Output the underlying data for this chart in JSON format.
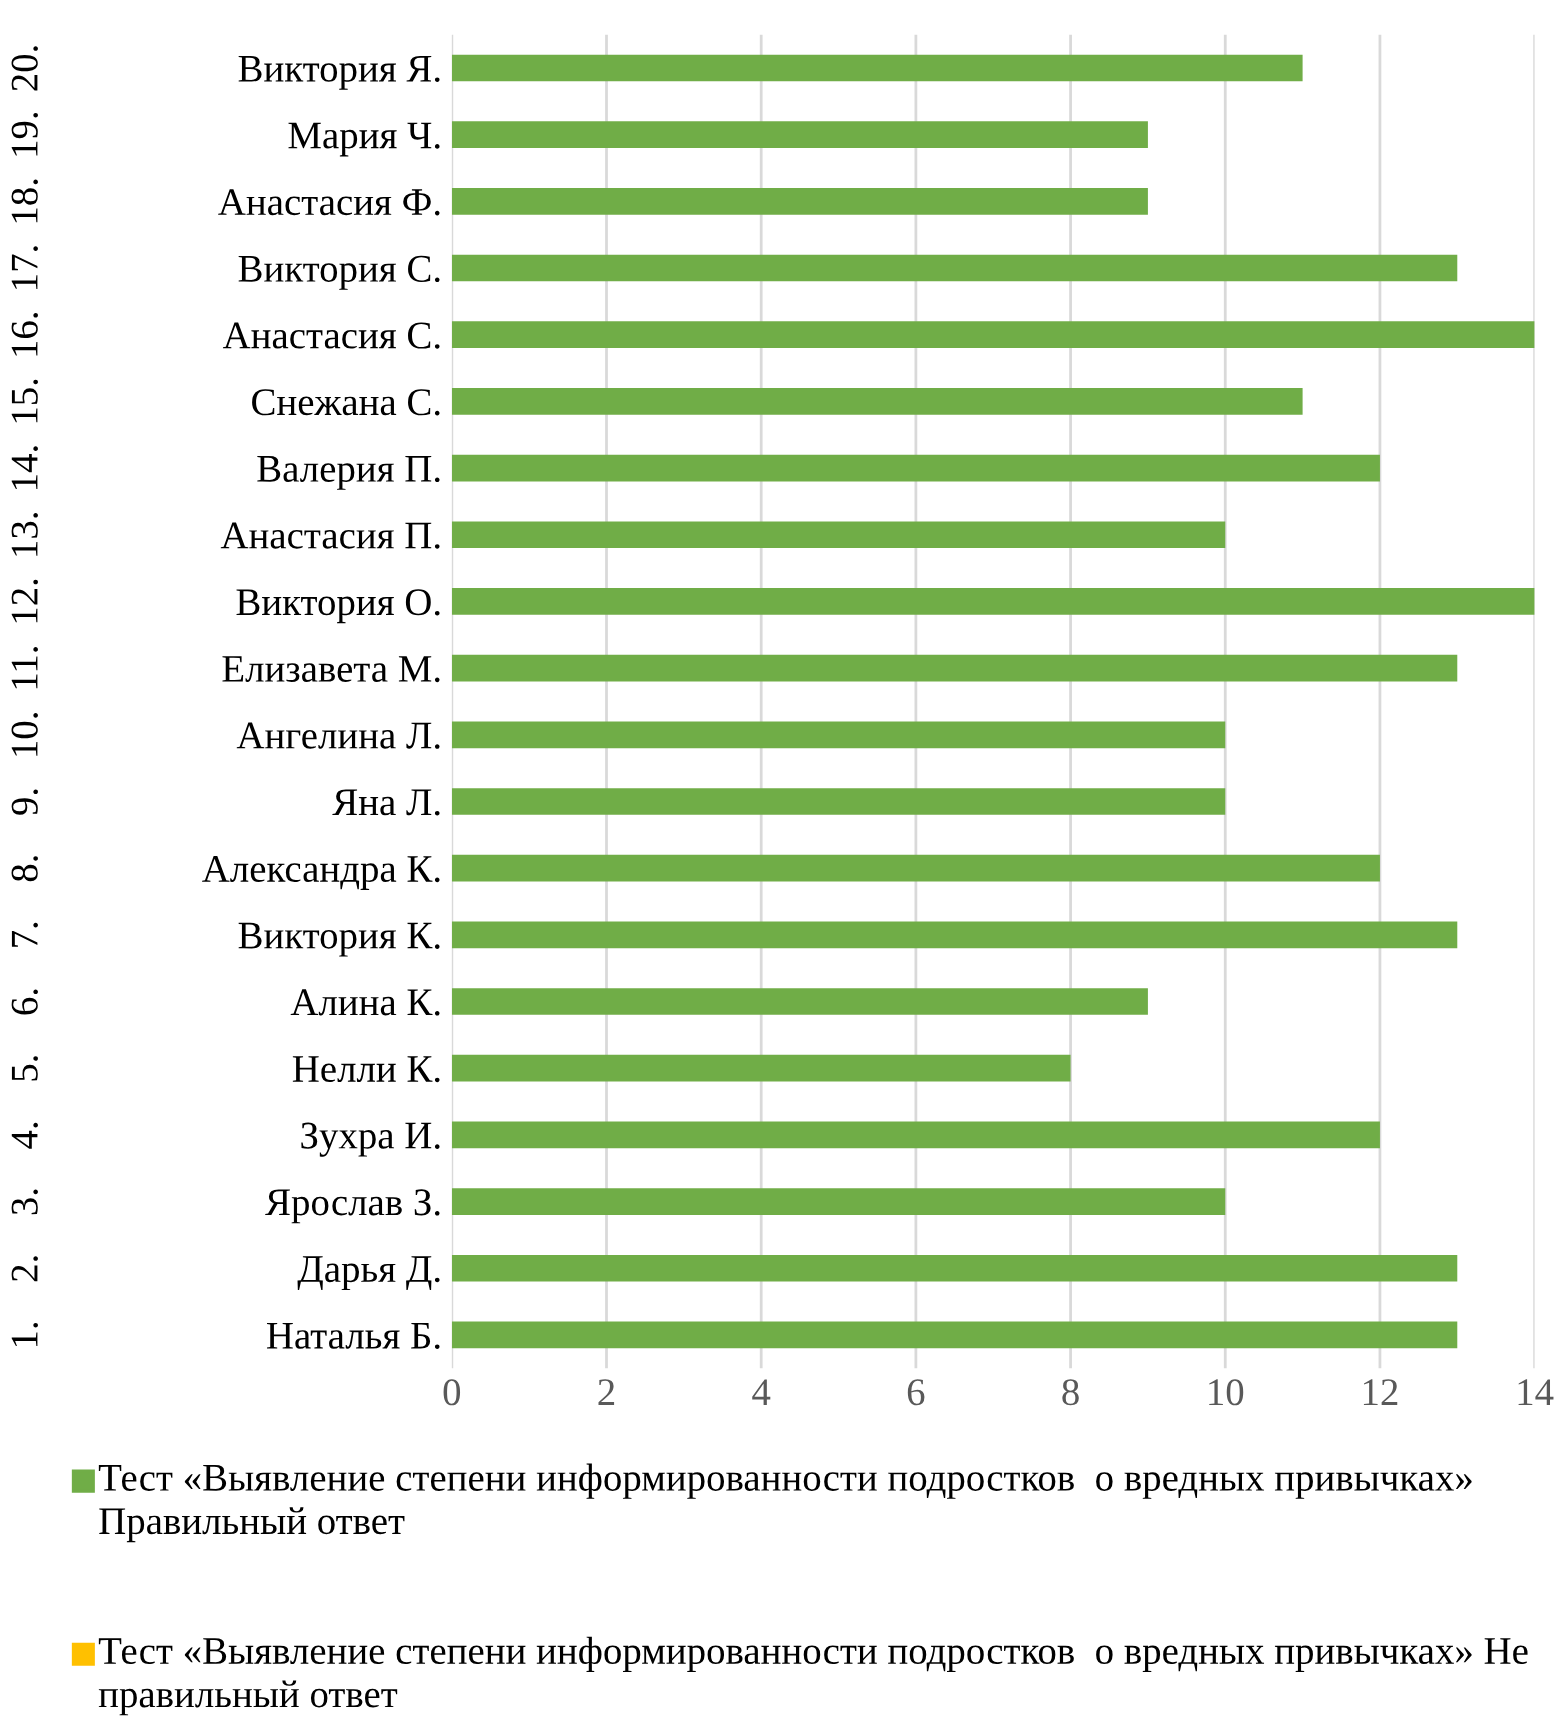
{
  "chart_data": {
    "type": "bar",
    "orientation": "horizontal",
    "categories": [
      "Виктория Я.",
      "Мария Ч.",
      "Анастасия Ф.",
      "Виктория С.",
      "Анастасия С.",
      "Снежана С.",
      "Валерия П.",
      "Анастасия П.",
      "Виктория О.",
      "Елизавета М.",
      "Ангелина Л.",
      "Яна Л.",
      "Александра К.",
      "Виктория К.",
      "Алина К.",
      "Нелли К.",
      "Зухра И.",
      "Ярослав З.",
      "Дарья Д.",
      "Наталья Б."
    ],
    "series": [
      {
        "name": "Тест «Выявление степени информированности подростков  о вредных привычках» Правильный ответ",
        "color": "#70ad47",
        "values": [
          11,
          9,
          9,
          13,
          14,
          11,
          12,
          10,
          14,
          13,
          10,
          10,
          12,
          13,
          9,
          8,
          12,
          10,
          13,
          13
        ]
      },
      {
        "name": "Тест «Выявление степени информированности подростков  о вредных привычках» Не правильный ответ",
        "color": "#ffc000",
        "values": [
          null,
          null,
          null,
          null,
          null,
          null,
          null,
          null,
          null,
          null,
          null,
          null,
          null,
          null,
          null,
          null,
          null,
          null,
          null,
          null
        ]
      }
    ],
    "xlim": [
      0,
      14
    ],
    "xticks": [
      0,
      2,
      4,
      6,
      8,
      10,
      12,
      14
    ],
    "grid": "x",
    "legend": "bottom",
    "annotations": [
      "1.",
      "2.",
      "3.",
      "4.",
      "5.",
      "6.",
      "7.",
      "8.",
      "9.",
      "10.",
      "11.",
      "12.",
      "13.",
      "14.",
      "15.",
      "16.",
      "17.",
      "18.",
      "19.",
      "20."
    ]
  }
}
